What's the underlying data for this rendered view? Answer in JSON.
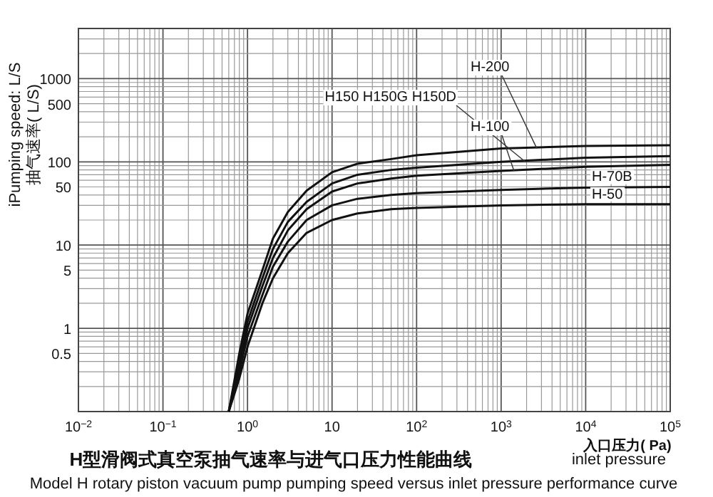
{
  "chart_data": {
    "type": "line",
    "title": "H型滑阀式真空泵抽气速率与进气口压力性能曲线",
    "subtitle": "Model H rotary piston vacuum pump pumping speed versus inlet pressure performance curve",
    "xlabel": "入口压力( Pa)\ninlet pressure",
    "ylabel": "iPumping speed: L/S\n抽气速率( L/S)",
    "x": [
      0.6,
      0.8,
      1,
      1.5,
      2,
      3,
      5,
      10,
      20,
      50,
      100,
      1000,
      10000,
      100000
    ],
    "series": [
      {
        "name": "H-200",
        "color": "#111111",
        "values": [
          0.1,
          0.5,
          1.5,
          5,
          12,
          25,
          45,
          75,
          95,
          108,
          120,
          145,
          155,
          158
        ]
      },
      {
        "name": "H150 H150G H150D",
        "color": "#111111",
        "values": [
          0.1,
          0.4,
          1.2,
          4,
          9,
          19,
          33,
          55,
          70,
          80,
          85,
          100,
          112,
          117
        ]
      },
      {
        "name": "H-100",
        "color": "#111111",
        "values": [
          0.1,
          0.35,
          1,
          3.2,
          7,
          15,
          27,
          44,
          55,
          63,
          68,
          78,
          87,
          92
        ]
      },
      {
        "name": "H-70B",
        "color": "#111111",
        "values": [
          0.1,
          0.3,
          0.8,
          2.5,
          5.5,
          11,
          20,
          30,
          36,
          40,
          42,
          46,
          49,
          50
        ]
      },
      {
        "name": "H-50",
        "color": "#111111",
        "values": [
          0.1,
          0.25,
          0.6,
          2,
          4,
          8,
          14,
          20,
          24,
          27,
          28,
          30,
          31,
          31
        ]
      }
    ],
    "log": "xy",
    "xlim": [
      0.01,
      100000
    ],
    "ylim": [
      0.1,
      4000
    ],
    "xticks": [
      {
        "value": 0.01,
        "label": "10$^{−2}$"
      },
      {
        "value": 0.1,
        "label": "10$^{−1}$"
      },
      {
        "value": 1,
        "label": "10$^{0}$"
      },
      10,
      {
        "value": 100,
        "label": "10$^{2}$"
      },
      {
        "value": 1000,
        "label": "10$^{3}$"
      },
      {
        "value": 10000,
        "label": "10$^{4}$"
      },
      {
        "value": 100000,
        "label": "10$^{5}$"
      }
    ],
    "yticks": [
      0.5,
      1,
      5,
      10,
      50,
      100,
      500,
      1000
    ],
    "grid": true
  }
}
